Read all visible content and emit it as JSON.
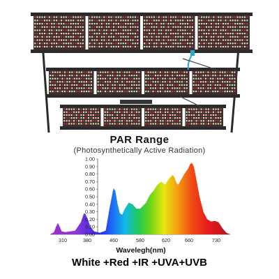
{
  "product": {
    "bars_per_panel": 4,
    "panel_count": 3,
    "colors": {
      "frame": "#2a2a2a",
      "bar": "#3a2f2f",
      "red_led": "#c8323c",
      "white_led": "#f2dfbf",
      "cable": "#2aa7c9"
    }
  },
  "header": {
    "title": "PAR Range",
    "subtitle": "(Photosynthetically Active Radiation)"
  },
  "caption": "White +Red +IR +UVA+UVB",
  "chart_data": {
    "type": "area",
    "xlabel": "Wavelegh(nm)",
    "ylabel": "",
    "y_ticks": [
      "1.00",
      "0.90",
      "0.80",
      "0.70",
      "0.60",
      "0.50",
      "0.40",
      "0.30",
      "0.20",
      "0.10",
      "0.00"
    ],
    "x_ticks": [
      "310",
      "380",
      "460",
      "580",
      "620",
      "660",
      "730"
    ],
    "x_range": [
      290,
      760
    ],
    "ylim": [
      0,
      1.0
    ],
    "grid": false,
    "fill": "visible-spectrum gradient",
    "series": [
      {
        "x": [
          290,
          300,
          305,
          310,
          315,
          320,
          330,
          355,
          370,
          378,
          382,
          388,
          395,
          405,
          420,
          435,
          445,
          455,
          460,
          466,
          472,
          478,
          485,
          495,
          505,
          515,
          525,
          540,
          550,
          560,
          570,
          580,
          590,
          600,
          610,
          615,
          620,
          625,
          630,
          640,
          650,
          655,
          660,
          665,
          672,
          680,
          690,
          700,
          710,
          720,
          730,
          740,
          750,
          760
        ],
        "y": [
          0.0,
          0.03,
          0.1,
          0.15,
          0.1,
          0.04,
          0.03,
          0.05,
          0.16,
          0.28,
          0.27,
          0.2,
          0.1,
          0.04,
          0.02,
          0.05,
          0.35,
          0.61,
          0.58,
          0.4,
          0.28,
          0.26,
          0.34,
          0.42,
          0.4,
          0.34,
          0.34,
          0.42,
          0.52,
          0.58,
          0.66,
          0.7,
          0.66,
          0.74,
          0.79,
          0.75,
          0.68,
          0.66,
          0.71,
          0.8,
          0.87,
          0.93,
          0.95,
          0.9,
          0.72,
          0.5,
          0.3,
          0.2,
          0.17,
          0.18,
          0.16,
          0.08,
          0.02,
          0.0
        ]
      }
    ]
  }
}
